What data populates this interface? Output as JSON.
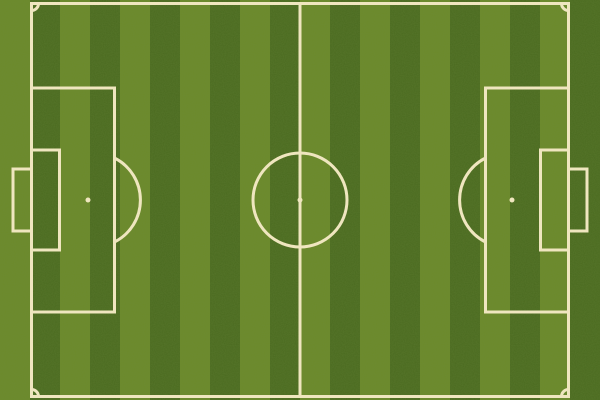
{
  "scene": {
    "subject": "soccer-pitch",
    "view": "top-down",
    "stripe_count": 20,
    "colors": {
      "stripe_dark": "#4a6a1f",
      "stripe_light": "#6c8a2a",
      "line": "#efe6bf",
      "grass_noise": "#2f4a10"
    },
    "features": [
      "touchlines",
      "goal-lines",
      "halfway-line",
      "center-circle",
      "center-spot",
      "penalty-areas",
      "goal-areas",
      "penalty-spots",
      "penalty-arcs",
      "goals",
      "corner-arcs"
    ]
  }
}
